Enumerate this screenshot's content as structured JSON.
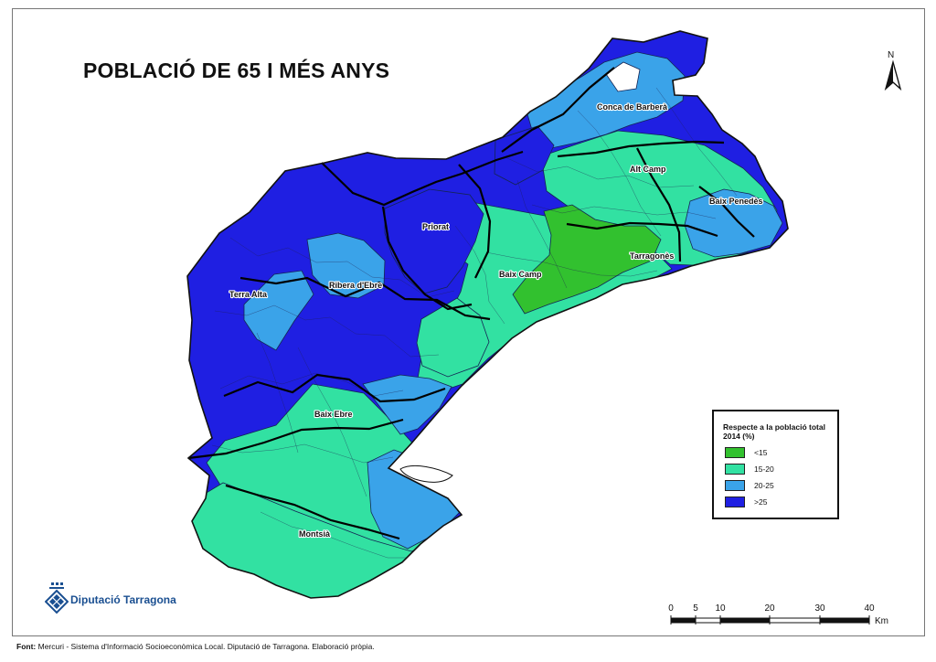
{
  "title": "POBLACIÓ DE 65 I MÉS ANYS",
  "north": "N",
  "regions": [
    {
      "name": "Conca de Barberà"
    },
    {
      "name": "Alt Camp"
    },
    {
      "name": "Baix Penedès"
    },
    {
      "name": "Priorat"
    },
    {
      "name": "Tarragonès"
    },
    {
      "name": "Baix Camp"
    },
    {
      "name": "Ribera d'Ebre"
    },
    {
      "name": "Terra Alta"
    },
    {
      "name": "Baix Ebre"
    },
    {
      "name": "Montsià"
    }
  ],
  "legend": {
    "title": "Respecte a la població total 2014 (%)",
    "items": [
      {
        "label": "<15",
        "color": "#32c12f"
      },
      {
        "label": "15-20",
        "color": "#32e1a2"
      },
      {
        "label": "20-25",
        "color": "#3aa3e9"
      },
      {
        "label": ">25",
        "color": "#1f1fe2"
      }
    ]
  },
  "logo": {
    "text": "Diputació Tarragona",
    "color": "#1a4f91"
  },
  "scale_bar": {
    "ticks": [
      "0",
      "5",
      "10",
      "20",
      "30",
      "40"
    ],
    "unit": "Km"
  },
  "source": {
    "label": "Font:",
    "text": "Mercuri - Sistema d'Informació Socioeconòmica Local. Diputació de Tarragona. Elaboració pròpia."
  }
}
